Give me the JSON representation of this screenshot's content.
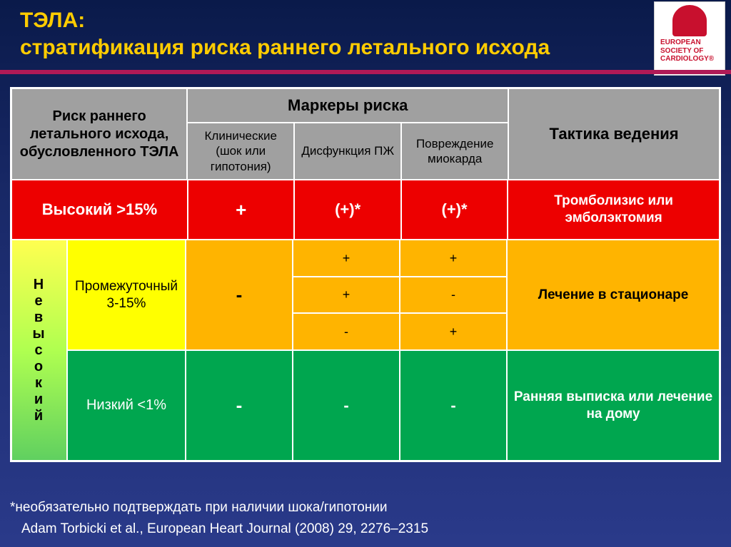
{
  "title": {
    "line1": "ТЭЛА:",
    "line2": "стратификация риска раннего летального исхода"
  },
  "logo": {
    "l1": "EUROPEAN",
    "l2": "SOCIETY OF",
    "l3": "CARDIOLOGY®"
  },
  "table": {
    "header": {
      "risk_col": "Риск раннего летального исхода, обусловленного ТЭЛА",
      "markers_group": "Маркеры риска",
      "tactics_col": "Тактика ведения",
      "sub": {
        "clinical": "Клинические (шок или гипотония)",
        "rv": "Дисфункция ПЖ",
        "myo": "Повреждение миокарда"
      }
    },
    "high_row": {
      "label": "Высокий >15%",
      "m1": "+",
      "m2": "(+)*",
      "m3": "(+)*",
      "tactic": "Тромболизис или эмболэктомия"
    },
    "nonhigh_label": "Невысокий",
    "inter": {
      "label": "Промежуточный 3-15%",
      "m1": "-",
      "m2_a": "+",
      "m3_a": "+",
      "m2_b": "+",
      "m3_b": "-",
      "m2_c": "-",
      "m3_c": "+",
      "tactic": "Лечение в стационаре"
    },
    "low": {
      "label": "Низкий <1%",
      "m1": "-",
      "m2": "-",
      "m3": "-",
      "tactic": "Ранняя выписка или лечение на дому"
    }
  },
  "footnote": "*необязательно подтверждать при наличии шока/гипотонии",
  "citation": "Adam Torbicki et al., European Heart Journal (2008) 29, 2276–2315",
  "colors": {
    "title": "#ffcc00",
    "red": "#ed0000",
    "yellow": "#ffff00",
    "yellowish": "#e8ff5e",
    "orange": "#ffb400",
    "green": "#00a64f",
    "grey": "#a0a0a0",
    "bg_top": "#0a1a4a"
  }
}
